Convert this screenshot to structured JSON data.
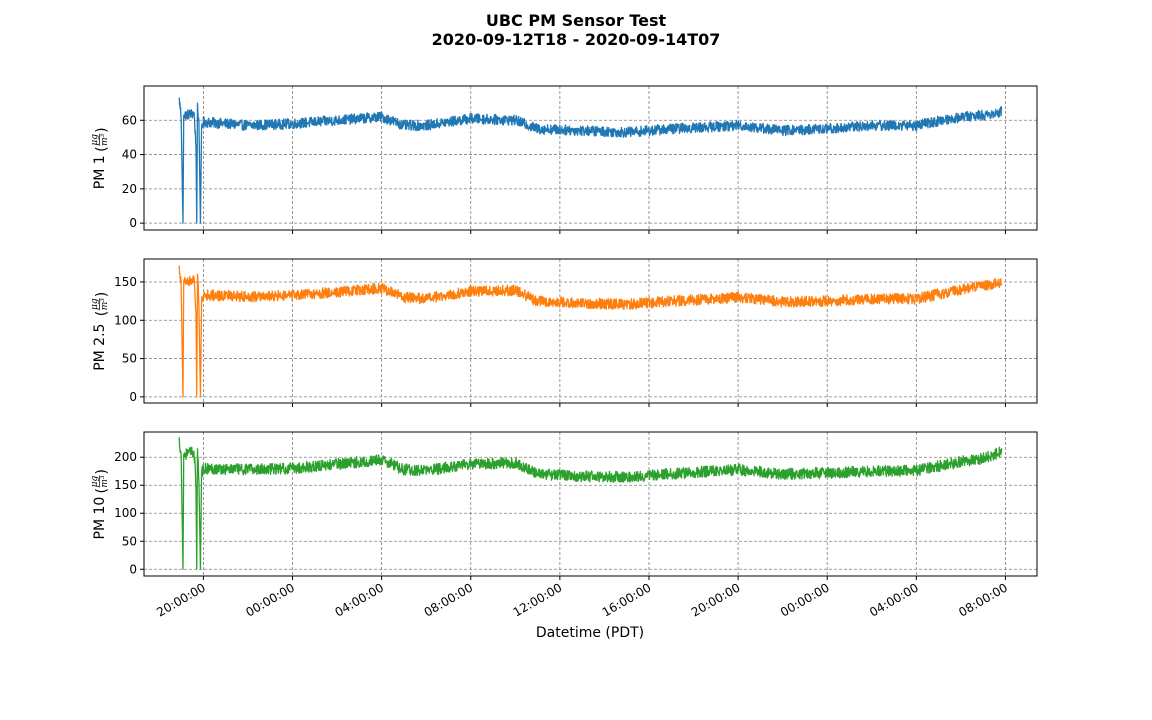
{
  "figure": {
    "title_line1": "UBC PM Sensor Test",
    "title_line2": "2020-09-12T18  -  2020-09-14T07"
  },
  "chart_data": [
    {
      "type": "line",
      "panel": "pm1",
      "ylabel": "PM 1",
      "unit_numerator": "μg",
      "unit_denominator": "m³",
      "color": "#1f77b4",
      "ylim": [
        -4,
        80
      ],
      "yticks": [
        0,
        20,
        40,
        60
      ],
      "ytick_labels": [
        "0",
        "20",
        "40",
        "60"
      ],
      "grid": true,
      "noise": 3.0,
      "points": [
        [
          "2020-09-12T18:55",
          72
        ],
        [
          "2020-09-12T19:00",
          63
        ],
        [
          "2020-09-12T19:05",
          0
        ],
        [
          "2020-09-12T19:07",
          63
        ],
        [
          "2020-09-12T19:35",
          64
        ],
        [
          "2020-09-12T19:40",
          45
        ],
        [
          "2020-09-12T19:42",
          0
        ],
        [
          "2020-09-12T19:44",
          70
        ],
        [
          "2020-09-12T19:48",
          55
        ],
        [
          "2020-09-12T19:52",
          0
        ],
        [
          "2020-09-12T19:55",
          55
        ],
        [
          "2020-09-12T20:00",
          59
        ],
        [
          "2020-09-12T22:00",
          57
        ],
        [
          "2020-09-13T00:00",
          58
        ],
        [
          "2020-09-13T02:00",
          60
        ],
        [
          "2020-09-13T04:00",
          62
        ],
        [
          "2020-09-13T05:00",
          57
        ],
        [
          "2020-09-13T06:00",
          57
        ],
        [
          "2020-09-13T08:00",
          61
        ],
        [
          "2020-09-13T10:00",
          60
        ],
        [
          "2020-09-13T11:00",
          55
        ],
        [
          "2020-09-13T13:00",
          54
        ],
        [
          "2020-09-13T15:00",
          53
        ],
        [
          "2020-09-13T17:00",
          55
        ],
        [
          "2020-09-13T20:00",
          57
        ],
        [
          "2020-09-13T22:00",
          54
        ],
        [
          "2020-09-14T00:00",
          55
        ],
        [
          "2020-09-14T02:00",
          57
        ],
        [
          "2020-09-14T04:00",
          57
        ],
        [
          "2020-09-14T06:00",
          62
        ],
        [
          "2020-09-14T07:00",
          63
        ],
        [
          "2020-09-14T07:50",
          65
        ]
      ]
    },
    {
      "type": "line",
      "panel": "pm25",
      "ylabel": "PM 2.5",
      "unit_numerator": "μg",
      "unit_denominator": "m³",
      "color": "#ff7f0e",
      "ylim": [
        -8,
        180
      ],
      "yticks": [
        0,
        50,
        100,
        150
      ],
      "ytick_labels": [
        "0",
        "50",
        "100",
        "150"
      ],
      "grid": true,
      "noise": 7.0,
      "points": [
        [
          "2020-09-12T18:55",
          168
        ],
        [
          "2020-09-12T19:00",
          148
        ],
        [
          "2020-09-12T19:05",
          0
        ],
        [
          "2020-09-12T19:07",
          150
        ],
        [
          "2020-09-12T19:35",
          152
        ],
        [
          "2020-09-12T19:40",
          110
        ],
        [
          "2020-09-12T19:42",
          0
        ],
        [
          "2020-09-12T19:44",
          160
        ],
        [
          "2020-09-12T19:48",
          120
        ],
        [
          "2020-09-12T19:52",
          0
        ],
        [
          "2020-09-12T19:55",
          125
        ],
        [
          "2020-09-12T20:00",
          133
        ],
        [
          "2020-09-12T22:00",
          131
        ],
        [
          "2020-09-13T00:00",
          132
        ],
        [
          "2020-09-13T02:00",
          137
        ],
        [
          "2020-09-13T04:00",
          142
        ],
        [
          "2020-09-13T05:00",
          130
        ],
        [
          "2020-09-13T06:00",
          128
        ],
        [
          "2020-09-13T08:00",
          138
        ],
        [
          "2020-09-13T10:00",
          139
        ],
        [
          "2020-09-13T11:00",
          125
        ],
        [
          "2020-09-13T13:00",
          122
        ],
        [
          "2020-09-13T15:00",
          121
        ],
        [
          "2020-09-13T17:00",
          125
        ],
        [
          "2020-09-13T20:00",
          130
        ],
        [
          "2020-09-13T22:00",
          124
        ],
        [
          "2020-09-14T00:00",
          125
        ],
        [
          "2020-09-14T02:00",
          128
        ],
        [
          "2020-09-14T04:00",
          128
        ],
        [
          "2020-09-14T06:00",
          140
        ],
        [
          "2020-09-14T07:00",
          145
        ],
        [
          "2020-09-14T07:50",
          150
        ]
      ]
    },
    {
      "type": "line",
      "panel": "pm10",
      "ylabel": "PM 10",
      "unit_numerator": "μg",
      "unit_denominator": "m³",
      "color": "#2ca02c",
      "ylim": [
        -12,
        245
      ],
      "yticks": [
        0,
        50,
        100,
        150,
        200
      ],
      "ytick_labels": [
        "0",
        "50",
        "100",
        "150",
        "200"
      ],
      "grid": true,
      "noise": 10.0,
      "points": [
        [
          "2020-09-12T18:55",
          230
        ],
        [
          "2020-09-12T19:00",
          205
        ],
        [
          "2020-09-12T19:05",
          0
        ],
        [
          "2020-09-12T19:07",
          205
        ],
        [
          "2020-09-12T19:35",
          210
        ],
        [
          "2020-09-12T19:40",
          150
        ],
        [
          "2020-09-12T19:42",
          0
        ],
        [
          "2020-09-12T19:44",
          215
        ],
        [
          "2020-09-12T19:48",
          160
        ],
        [
          "2020-09-12T19:52",
          0
        ],
        [
          "2020-09-12T19:55",
          170
        ],
        [
          "2020-09-12T20:00",
          180
        ],
        [
          "2020-09-12T22:00",
          178
        ],
        [
          "2020-09-13T00:00",
          180
        ],
        [
          "2020-09-13T02:00",
          188
        ],
        [
          "2020-09-13T04:00",
          195
        ],
        [
          "2020-09-13T05:00",
          178
        ],
        [
          "2020-09-13T06:00",
          176
        ],
        [
          "2020-09-13T08:00",
          188
        ],
        [
          "2020-09-13T10:00",
          190
        ],
        [
          "2020-09-13T11:00",
          170
        ],
        [
          "2020-09-13T13:00",
          166
        ],
        [
          "2020-09-13T15:00",
          165
        ],
        [
          "2020-09-13T17:00",
          170
        ],
        [
          "2020-09-13T20:00",
          178
        ],
        [
          "2020-09-13T22:00",
          170
        ],
        [
          "2020-09-14T00:00",
          172
        ],
        [
          "2020-09-14T02:00",
          175
        ],
        [
          "2020-09-14T04:00",
          176
        ],
        [
          "2020-09-14T06:00",
          192
        ],
        [
          "2020-09-14T07:00",
          198
        ],
        [
          "2020-09-14T07:50",
          210
        ]
      ]
    }
  ],
  "x_axis": {
    "label": "Datetime (PDT)",
    "range": [
      "2020-09-12T17:20",
      "2020-09-14T09:25"
    ],
    "ticks": [
      "2020-09-12T20:00",
      "2020-09-13T00:00",
      "2020-09-13T04:00",
      "2020-09-13T08:00",
      "2020-09-13T12:00",
      "2020-09-13T16:00",
      "2020-09-13T20:00",
      "2020-09-14T00:00",
      "2020-09-14T04:00",
      "2020-09-14T08:00"
    ],
    "tick_labels": [
      "20:00:00",
      "00:00:00",
      "04:00:00",
      "08:00:00",
      "12:00:00",
      "16:00:00",
      "20:00:00",
      "00:00:00",
      "04:00:00",
      "08:00:00"
    ]
  }
}
